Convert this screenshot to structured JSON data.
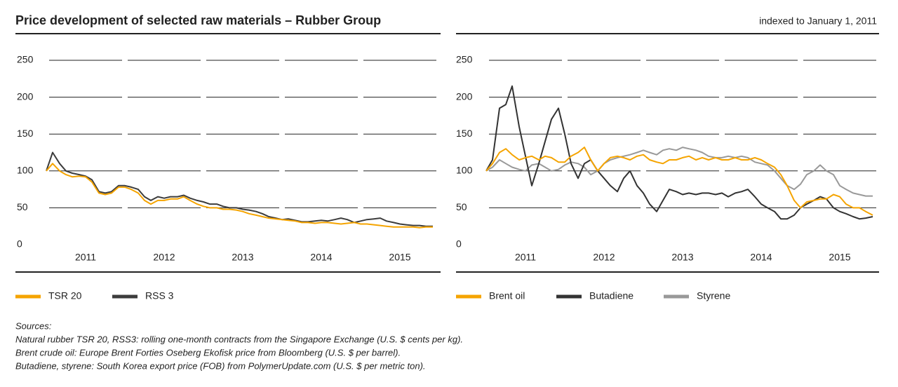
{
  "header": {
    "title": "Price development of selected raw materials – Rubber Group",
    "note": "indexed to January 1, 2011"
  },
  "chart_data": [
    {
      "type": "line",
      "x": [
        2011,
        2011.08,
        2011.17,
        2011.25,
        2011.33,
        2011.42,
        2011.5,
        2011.58,
        2011.67,
        2011.75,
        2011.83,
        2011.92,
        2012,
        2012.08,
        2012.17,
        2012.25,
        2012.33,
        2012.42,
        2012.5,
        2012.58,
        2012.67,
        2012.75,
        2012.83,
        2012.92,
        2013,
        2013.08,
        2013.17,
        2013.25,
        2013.33,
        2013.42,
        2013.5,
        2013.58,
        2013.67,
        2013.75,
        2013.83,
        2013.92,
        2014,
        2014.08,
        2014.17,
        2014.25,
        2014.33,
        2014.42,
        2014.5,
        2014.58,
        2014.67,
        2014.75,
        2014.83,
        2014.92,
        2015,
        2015.08,
        2015.17,
        2015.25,
        2015.33,
        2015.42,
        2015.5,
        2015.58,
        2015.67,
        2015.75,
        2015.83,
        2015.92
      ],
      "xlim": [
        2011,
        2016
      ],
      "xticks": [
        {
          "value": 2011.5,
          "label": "2011"
        },
        {
          "value": 2012.5,
          "label": "2012"
        },
        {
          "value": 2013.5,
          "label": "2013"
        },
        {
          "value": 2014.5,
          "label": "2014"
        },
        {
          "value": 2015.5,
          "label": "2015"
        }
      ],
      "ylim": [
        0,
        250
      ],
      "yticks": [
        0,
        50,
        100,
        150,
        200,
        250
      ],
      "grid": true,
      "series": [
        {
          "name": "TSR 20",
          "color": "#f5a400",
          "values": [
            100,
            110,
            100,
            95,
            92,
            93,
            92,
            85,
            70,
            68,
            70,
            78,
            78,
            75,
            70,
            60,
            55,
            60,
            60,
            62,
            62,
            65,
            60,
            55,
            52,
            50,
            50,
            48,
            48,
            47,
            45,
            42,
            40,
            38,
            36,
            35,
            34,
            33,
            32,
            30,
            30,
            29,
            30,
            30,
            29,
            28,
            29,
            30,
            28,
            28,
            27,
            26,
            25,
            24,
            24,
            24,
            24,
            23,
            24,
            24
          ]
        },
        {
          "name": "RSS 3",
          "color": "#3c3c3c",
          "values": [
            100,
            125,
            110,
            100,
            97,
            95,
            93,
            88,
            72,
            70,
            72,
            80,
            80,
            78,
            75,
            65,
            60,
            65,
            63,
            65,
            65,
            67,
            63,
            60,
            58,
            55,
            55,
            52,
            50,
            50,
            48,
            47,
            45,
            42,
            38,
            36,
            34,
            35,
            33,
            31,
            31,
            32,
            33,
            32,
            34,
            36,
            34,
            30,
            32,
            34,
            35,
            36,
            32,
            30,
            28,
            27,
            26,
            26,
            25,
            25
          ]
        }
      ]
    },
    {
      "type": "line",
      "x": [
        2011,
        2011.08,
        2011.17,
        2011.25,
        2011.33,
        2011.42,
        2011.5,
        2011.58,
        2011.67,
        2011.75,
        2011.83,
        2011.92,
        2012,
        2012.08,
        2012.17,
        2012.25,
        2012.33,
        2012.42,
        2012.5,
        2012.58,
        2012.67,
        2012.75,
        2012.83,
        2012.92,
        2013,
        2013.08,
        2013.17,
        2013.25,
        2013.33,
        2013.42,
        2013.5,
        2013.58,
        2013.67,
        2013.75,
        2013.83,
        2013.92,
        2014,
        2014.08,
        2014.17,
        2014.25,
        2014.33,
        2014.42,
        2014.5,
        2014.58,
        2014.67,
        2014.75,
        2014.83,
        2014.92,
        2015,
        2015.08,
        2015.17,
        2015.25,
        2015.33,
        2015.42,
        2015.5,
        2015.58,
        2015.67,
        2015.75,
        2015.83,
        2015.92
      ],
      "xlim": [
        2011,
        2016
      ],
      "xticks": [
        {
          "value": 2011.5,
          "label": "2011"
        },
        {
          "value": 2012.5,
          "label": "2012"
        },
        {
          "value": 2013.5,
          "label": "2013"
        },
        {
          "value": 2014.5,
          "label": "2014"
        },
        {
          "value": 2015.5,
          "label": "2015"
        }
      ],
      "ylim": [
        0,
        250
      ],
      "yticks": [
        0,
        50,
        100,
        150,
        200,
        250
      ],
      "grid": true,
      "series": [
        {
          "name": "Brent oil",
          "color": "#f5a400",
          "values": [
            100,
            110,
            125,
            130,
            122,
            115,
            118,
            120,
            115,
            120,
            118,
            112,
            112,
            120,
            125,
            132,
            115,
            100,
            110,
            118,
            120,
            118,
            115,
            120,
            122,
            115,
            112,
            110,
            115,
            115,
            118,
            120,
            115,
            118,
            115,
            118,
            115,
            115,
            118,
            115,
            115,
            118,
            115,
            110,
            105,
            95,
            80,
            60,
            50,
            58,
            60,
            62,
            62,
            68,
            65,
            55,
            50,
            50,
            45,
            40
          ]
        },
        {
          "name": "Butadiene",
          "color": "#333333",
          "values": [
            100,
            115,
            185,
            190,
            215,
            160,
            120,
            80,
            110,
            140,
            170,
            185,
            150,
            110,
            90,
            110,
            115,
            100,
            90,
            80,
            72,
            90,
            100,
            80,
            70,
            55,
            45,
            60,
            75,
            72,
            68,
            70,
            68,
            70,
            70,
            68,
            70,
            65,
            70,
            72,
            75,
            65,
            55,
            50,
            45,
            35,
            35,
            40,
            50,
            55,
            60,
            65,
            62,
            50,
            45,
            42,
            38,
            35,
            36,
            38
          ]
        },
        {
          "name": "Styrene",
          "color": "#999999",
          "values": [
            100,
            105,
            115,
            110,
            105,
            102,
            100,
            108,
            110,
            105,
            100,
            102,
            108,
            112,
            110,
            105,
            95,
            100,
            110,
            115,
            118,
            120,
            122,
            125,
            128,
            125,
            122,
            128,
            130,
            128,
            132,
            130,
            128,
            125,
            120,
            118,
            118,
            120,
            118,
            120,
            118,
            112,
            110,
            108,
            100,
            90,
            80,
            75,
            82,
            95,
            100,
            108,
            100,
            95,
            80,
            75,
            70,
            68,
            66,
            66
          ]
        }
      ]
    }
  ],
  "sources": [
    "Sources:",
    "Natural rubber TSR 20, RSS3: rolling one-month contracts from the Singapore Exchange (U.S. $ cents per kg).",
    "Brent crude oil: Europe Brent Forties Oseberg Ekofisk price from Bloomberg (U.S. $ per barrel).",
    "Butadiene, styrene: South Korea export price (FOB) from PolymerUpdate.com (U.S. $ per metric ton)."
  ]
}
